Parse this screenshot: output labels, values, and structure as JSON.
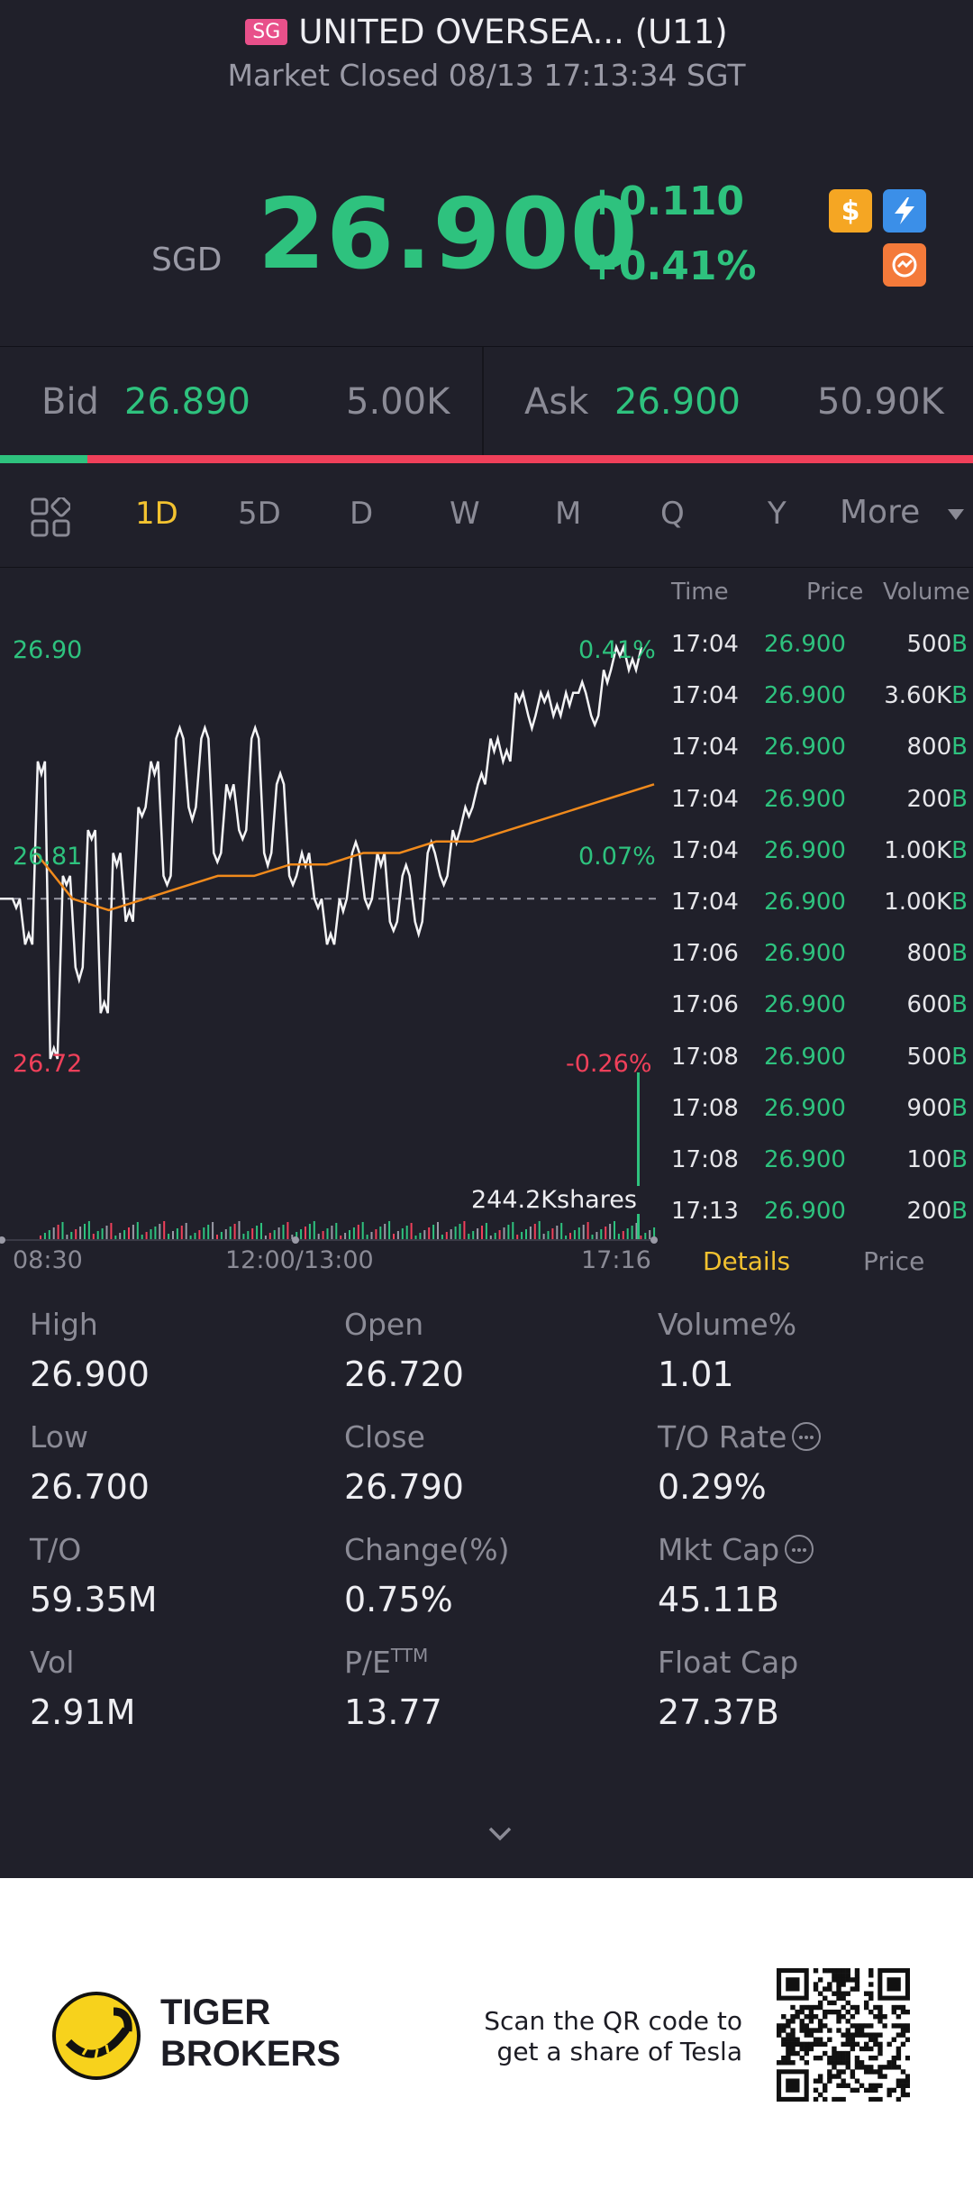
{
  "header": {
    "market_badge": "SG",
    "title": "UNITED OVERSEA... (U11)",
    "status": "Market Closed 08/13 17:13:34 SGT",
    "currency": "SGD",
    "price": "26.900",
    "change_abs": "+0.110",
    "change_pct": "+0.41%",
    "icons": [
      "dollar-icon",
      "flash-icon",
      "swap-icon"
    ]
  },
  "bidask": {
    "bid_label": "Bid",
    "bid_price": "26.890",
    "bid_size": "5.00K",
    "ask_label": "Ask",
    "ask_price": "26.900",
    "ask_size": "50.90K",
    "bid_ratio": 0.09
  },
  "tabs": {
    "items": [
      "1D",
      "5D",
      "D",
      "W",
      "M",
      "Q",
      "Y"
    ],
    "active": "1D",
    "more_label": "More"
  },
  "chart": {
    "high_label": "26.90",
    "mid_label": "26.81",
    "low_label": "26.72",
    "high_pct": "0.41%",
    "mid_pct": "0.07%",
    "low_pct": "-0.26%",
    "volume_label": "244.2Kshares",
    "time_start": "08:30",
    "time_mid": "12:00/13:00",
    "time_end": "17:16"
  },
  "chart_data": {
    "type": "line",
    "ylim": [
      26.72,
      26.9
    ],
    "reference_close": 26.79,
    "series": [
      {
        "values": [
          26.79,
          26.79,
          26.77,
          26.85,
          26.72,
          26.8,
          26.76,
          26.82,
          26.74,
          26.81,
          26.78,
          26.83,
          26.85,
          26.8,
          26.86,
          26.83,
          26.86,
          26.81,
          26.84,
          26.82,
          26.86,
          26.81,
          26.84,
          26.8,
          26.81,
          26.79,
          26.77,
          26.79,
          26.81,
          26.79,
          26.81,
          26.78,
          26.8,
          26.78,
          26.81,
          26.8,
          26.82,
          26.83,
          26.84,
          26.86,
          26.85,
          26.88,
          26.87,
          26.88,
          26.87,
          26.88,
          26.88,
          26.87,
          26.89,
          26.9,
          26.89,
          26.9
        ]
      },
      {
        "values": [
          26.81,
          26.79,
          26.785,
          26.79,
          26.795,
          26.8,
          26.8,
          26.805,
          26.805,
          26.81,
          26.81,
          26.815,
          26.815,
          26.82,
          26.825,
          26.83,
          26.835,
          26.84
        ]
      }
    ]
  },
  "ticks": {
    "headers": [
      "Time",
      "Price",
      "Volume"
    ],
    "rows": [
      {
        "time": "17:04",
        "price": "26.900",
        "vol": "500"
      },
      {
        "time": "17:04",
        "price": "26.900",
        "vol": "3.60K"
      },
      {
        "time": "17:04",
        "price": "26.900",
        "vol": "800"
      },
      {
        "time": "17:04",
        "price": "26.900",
        "vol": "200"
      },
      {
        "time": "17:04",
        "price": "26.900",
        "vol": "1.00K"
      },
      {
        "time": "17:04",
        "price": "26.900",
        "vol": "1.00K"
      },
      {
        "time": "17:06",
        "price": "26.900",
        "vol": "800"
      },
      {
        "time": "17:06",
        "price": "26.900",
        "vol": "600"
      },
      {
        "time": "17:08",
        "price": "26.900",
        "vol": "500"
      },
      {
        "time": "17:08",
        "price": "26.900",
        "vol": "900"
      },
      {
        "time": "17:08",
        "price": "26.900",
        "vol": "100"
      },
      {
        "time": "17:13",
        "price": "26.900",
        "vol": "200"
      }
    ],
    "side_flag": "B",
    "details_tab": "Details",
    "price_tab": "Price"
  },
  "stats": {
    "high": {
      "label": "High",
      "value": "26.900"
    },
    "open": {
      "label": "Open",
      "value": "26.720"
    },
    "volume_pct": {
      "label": "Volume%",
      "value": "1.01"
    },
    "low": {
      "label": "Low",
      "value": "26.700"
    },
    "close": {
      "label": "Close",
      "value": "26.790"
    },
    "to_rate": {
      "label": "T/O Rate",
      "value": "0.29%"
    },
    "to": {
      "label": "T/O",
      "value": "59.35M"
    },
    "change": {
      "label": "Change(%)",
      "value": "0.75%"
    },
    "mkt_cap": {
      "label": "Mkt Cap",
      "value": "45.11B"
    },
    "vol": {
      "label": "Vol",
      "value": "2.91M"
    },
    "pe": {
      "label": "P/E",
      "sup": "TTM",
      "value": "13.77"
    },
    "float_cap": {
      "label": "Float Cap",
      "value": "27.37B"
    }
  },
  "footer": {
    "brand_line1": "TIGER",
    "brand_line2": "BROKERS",
    "qr_line1": "Scan the QR code to",
    "qr_line2": "get a share of Tesla"
  },
  "colors": {
    "background": "#20202a",
    "up": "#2ec27e",
    "down": "#f0405a",
    "accent": "#f2c230",
    "avg_line": "#f08a1c"
  }
}
